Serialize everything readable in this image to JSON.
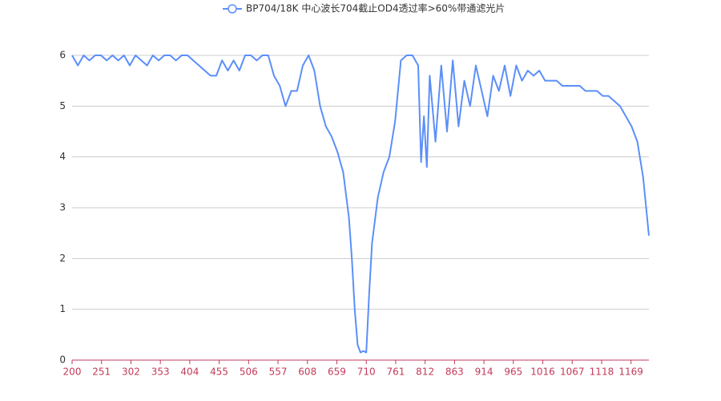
{
  "chart_data": {
    "type": "line",
    "x": [
      200,
      210,
      220,
      230,
      240,
      250,
      260,
      270,
      280,
      290,
      300,
      310,
      320,
      330,
      340,
      350,
      360,
      370,
      380,
      390,
      400,
      410,
      420,
      430,
      440,
      450,
      460,
      470,
      480,
      490,
      500,
      510,
      520,
      530,
      540,
      550,
      560,
      570,
      580,
      590,
      600,
      610,
      620,
      630,
      640,
      650,
      660,
      670,
      680,
      685,
      690,
      695,
      700,
      705,
      710,
      715,
      720,
      730,
      740,
      750,
      760,
      770,
      780,
      790,
      800,
      805,
      810,
      815,
      820,
      830,
      840,
      850,
      860,
      870,
      880,
      890,
      900,
      910,
      920,
      930,
      940,
      950,
      960,
      970,
      980,
      990,
      1000,
      1010,
      1020,
      1030,
      1040,
      1050,
      1060,
      1070,
      1080,
      1090,
      1100,
      1110,
      1120,
      1130,
      1140,
      1150,
      1160,
      1170,
      1180,
      1190,
      1200
    ],
    "series": [
      {
        "name": "BP704/18K 中心波长704截止OD4透过率>60%带通滤光片",
        "color": "#5b8ff9",
        "values": [
          6,
          5.8,
          6,
          5.9,
          6,
          6,
          5.9,
          6,
          5.9,
          6,
          5.8,
          6,
          5.9,
          5.8,
          6,
          5.9,
          6,
          6,
          5.9,
          6,
          6,
          5.9,
          5.8,
          5.7,
          5.6,
          5.6,
          5.9,
          5.7,
          5.9,
          5.7,
          6,
          6,
          5.9,
          6,
          6,
          5.6,
          5.4,
          5.0,
          5.3,
          5.3,
          5.8,
          6,
          5.7,
          5.0,
          4.6,
          4.4,
          4.1,
          3.7,
          2.8,
          2.0,
          1.0,
          0.3,
          0.15,
          0.18,
          0.15,
          1.3,
          2.3,
          3.2,
          3.7,
          4.0,
          4.7,
          5.9,
          6,
          6,
          5.8,
          3.9,
          4.8,
          3.8,
          5.6,
          4.3,
          5.8,
          4.5,
          5.9,
          4.6,
          5.5,
          5.0,
          5.8,
          5.3,
          4.8,
          5.6,
          5.3,
          5.8,
          5.2,
          5.8,
          5.5,
          5.7,
          5.6,
          5.7,
          5.5,
          5.5,
          5.5,
          5.4,
          5.4,
          5.4,
          5.4,
          5.3,
          5.3,
          5.3,
          5.2,
          5.2,
          5.1,
          5.0,
          4.8,
          4.6,
          4.3,
          3.6,
          2.45
        ]
      }
    ],
    "xlim": [
      200,
      1200
    ],
    "xticks": [
      200,
      251,
      302,
      353,
      404,
      455,
      506,
      557,
      608,
      659,
      710,
      761,
      812,
      863,
      914,
      965,
      1016,
      1067,
      1118,
      1169
    ],
    "ylim": [
      0,
      6
    ],
    "yticks": [
      0,
      1,
      2,
      3,
      4,
      5,
      6
    ],
    "grid": true
  }
}
